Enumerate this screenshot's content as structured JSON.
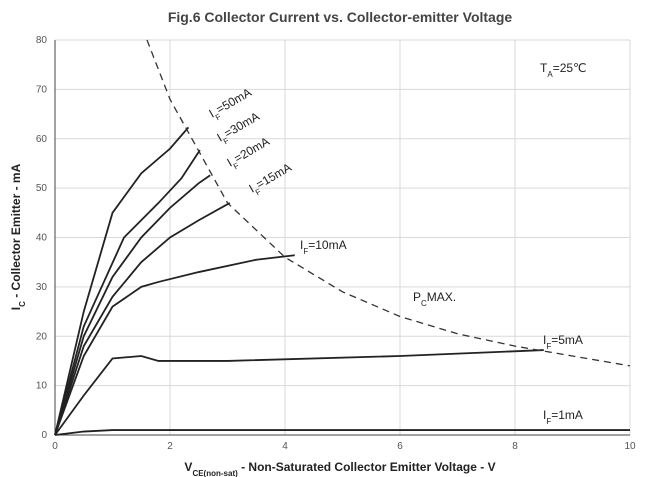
{
  "chart_data": {
    "type": "line",
    "title": "Fig.6 Collector Current vs. Collector-emitter Voltage",
    "x_label": [
      {
        "text": "V"
      },
      {
        "text": "CE(non-sat)",
        "sub": true
      },
      {
        "text": " - Non-Saturated Collector Emitter Voltage - V"
      }
    ],
    "y_label": [
      {
        "text": "I"
      },
      {
        "text": "C",
        "sub": true
      },
      {
        "text": " - Collector Emitter - mA"
      }
    ],
    "xlim": [
      0,
      10
    ],
    "ylim": [
      0,
      80
    ],
    "xticks": [
      0,
      2,
      4,
      6,
      8,
      10
    ],
    "yticks": [
      0,
      10,
      20,
      30,
      40,
      50,
      60,
      70,
      80
    ],
    "grid": true,
    "annotations": [
      [
        {
          "text": "T"
        },
        {
          "text": "A",
          "sub": true
        },
        {
          "text": "=25℃"
        }
      ],
      [
        {
          "text": "P"
        },
        {
          "text": "C",
          "sub": true
        },
        {
          "text": "MAX."
        }
      ]
    ],
    "series": [
      {
        "label": [
          {
            "text": "I"
          },
          {
            "text": "F",
            "sub": true
          },
          {
            "text": "=50mA"
          }
        ],
        "color": "#222",
        "x": [
          0,
          0.5,
          1,
          1.5,
          2,
          2.32
        ],
        "values": [
          0,
          25,
          45,
          53,
          58,
          62.3
        ]
      },
      {
        "label": [
          {
            "text": "I"
          },
          {
            "text": "F",
            "sub": true
          },
          {
            "text": "=30mA"
          }
        ],
        "color": "#222",
        "x": [
          0,
          0.5,
          1.2,
          1.8,
          2.2,
          2.52
        ],
        "values": [
          0,
          22,
          40,
          47,
          52,
          57.7
        ]
      },
      {
        "label": [
          {
            "text": "I"
          },
          {
            "text": "F",
            "sub": true
          },
          {
            "text": "=20mA"
          }
        ],
        "color": "#222",
        "x": [
          0,
          0.5,
          1,
          1.5,
          2,
          2.5,
          2.7
        ],
        "values": [
          0,
          20,
          32,
          40,
          46,
          51,
          52.6
        ]
      },
      {
        "label": [
          {
            "text": "I"
          },
          {
            "text": "F",
            "sub": true
          },
          {
            "text": "=15mA"
          }
        ],
        "color": "#222",
        "x": [
          0,
          0.5,
          1,
          1.5,
          2,
          2.5,
          3.04
        ],
        "values": [
          0,
          18,
          28,
          35,
          40,
          43.5,
          47
        ]
      },
      {
        "label": [
          {
            "text": "I"
          },
          {
            "text": "F",
            "sub": true
          },
          {
            "text": "=10mA"
          }
        ],
        "color": "#222",
        "x": [
          0,
          0.5,
          1,
          1.5,
          1.8,
          2.5,
          3.5,
          4.17
        ],
        "values": [
          0,
          16,
          26,
          30,
          31,
          33,
          35.5,
          36.4
        ]
      },
      {
        "label": [
          {
            "text": "I"
          },
          {
            "text": "F",
            "sub": true
          },
          {
            "text": "=5mA"
          }
        ],
        "color": "#222",
        "x": [
          0,
          0.5,
          1,
          1.5,
          1.8,
          3,
          6,
          8.5
        ],
        "values": [
          0,
          8,
          15.5,
          16,
          15,
          15,
          16,
          17.2
        ]
      },
      {
        "label": [
          {
            "text": "I"
          },
          {
            "text": "F",
            "sub": true
          },
          {
            "text": "=1mA"
          }
        ],
        "color": "#222",
        "x": [
          0,
          0.5,
          1,
          10
        ],
        "values": [
          0,
          0.7,
          1,
          1
        ]
      },
      {
        "color": "#333",
        "dashed": true,
        "x": [
          1.6,
          2,
          3,
          4,
          5,
          6,
          7,
          8,
          9,
          10
        ],
        "values": [
          80,
          68,
          47,
          36,
          29,
          24,
          20.5,
          18,
          16,
          14
        ]
      }
    ]
  }
}
